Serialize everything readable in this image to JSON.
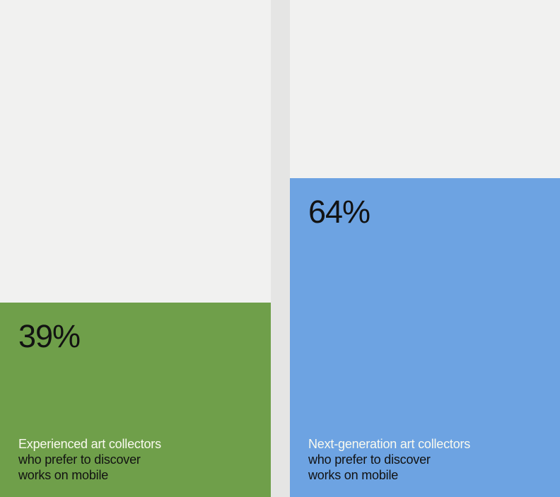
{
  "page": {
    "background_color": "#F1F1F0",
    "divider_color": "#E5E5E4"
  },
  "chart_data": {
    "type": "bar",
    "orientation": "vertical",
    "title": "",
    "categories": [
      "Experienced art collectors",
      "Next-generation art collectors"
    ],
    "values": [
      39,
      64
    ],
    "unit": "%",
    "value_labels": [
      "39%",
      "64%"
    ],
    "shared_caption": "who prefer to discover works on mobile",
    "colors": [
      "#6F9F4A",
      "#6DA3E2"
    ],
    "ylim": [
      0,
      100
    ],
    "grid": "off",
    "legend": "none"
  },
  "bars": [
    {
      "value_label": "39%",
      "audience": "Experienced art collectors",
      "caption_line_2": "who prefer to discover",
      "caption_line_3": "works on mobile",
      "fill_color": "#6F9F4A",
      "audience_text_color": "#FAFAEF",
      "body_text_color": "#121212"
    },
    {
      "value_label": "64%",
      "audience": "Next-generation art collectors",
      "caption_line_2": "who prefer to discover",
      "caption_line_3": "works on mobile",
      "fill_color": "#6DA3E2",
      "audience_text_color": "#FAFAEF",
      "body_text_color": "#121212"
    }
  ]
}
